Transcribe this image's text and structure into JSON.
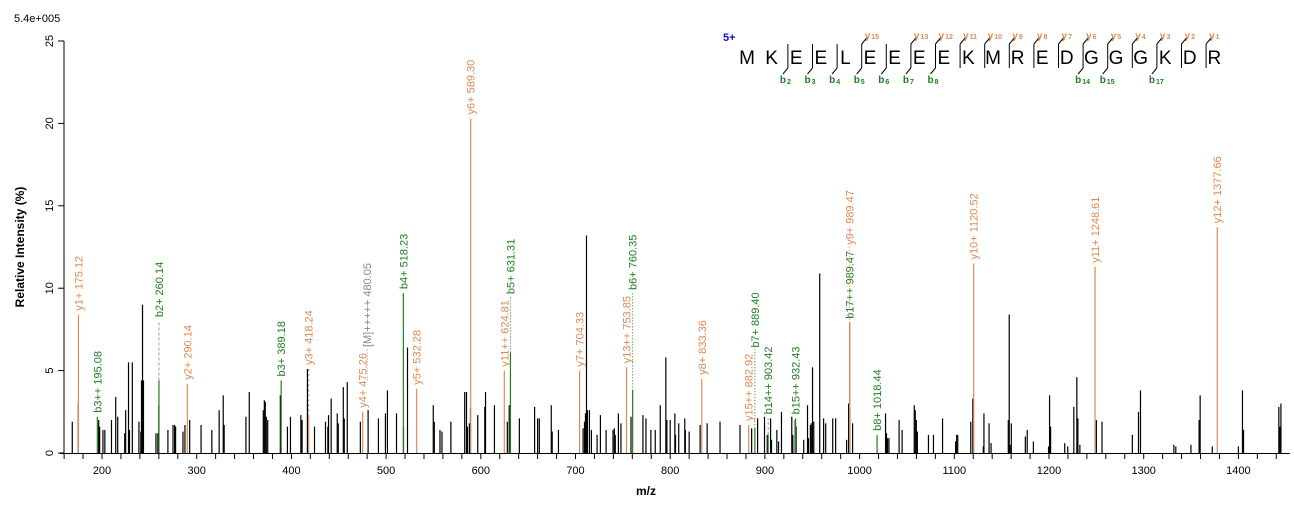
{
  "chart_data": {
    "type": "bar",
    "title": "",
    "scale_label": "5.4e+005",
    "xlabel": "m/z",
    "ylabel": "Relative Intensity (%)",
    "xlim": [
      160,
      1450
    ],
    "ylim": [
      0,
      25
    ],
    "x_ticks": [
      200,
      300,
      400,
      500,
      600,
      700,
      800,
      900,
      1000,
      1100,
      1200,
      1300,
      1400
    ],
    "x_minor_step": 20,
    "y_ticks": [
      0,
      5,
      10,
      15,
      20,
      25
    ],
    "grid": false,
    "colors": {
      "y_ion": "#E08A52",
      "b_ion": "#1F7F1F",
      "precursor": "#888888",
      "unassigned": "#000000",
      "charge": "#1010C0"
    },
    "annotated_peaks": [
      {
        "label": "y1+ 175.12",
        "mz": 175.12,
        "intensity": 8.4,
        "ion": "y_ion"
      },
      {
        "label": "b3++ 195.08",
        "mz": 195.08,
        "intensity": 2.2,
        "ion": "b_ion"
      },
      {
        "label": "b2+ 260.14",
        "mz": 260.14,
        "intensity": 4.4,
        "ion": "b_ion",
        "connector_to": 8.0
      },
      {
        "label": "y2+ 290.14",
        "mz": 290.14,
        "intensity": 4.2,
        "ion": "y_ion"
      },
      {
        "label": "b3+ 389.18",
        "mz": 389.18,
        "intensity": 4.4,
        "ion": "b_ion"
      },
      {
        "label": "y3+ 418.24",
        "mz": 418.24,
        "intensity": 2.2,
        "ion": "y_ion",
        "connector_to": 5.1
      },
      {
        "label": "y4+ 475.26",
        "mz": 475.26,
        "intensity": 2.5,
        "ion": "y_ion"
      },
      {
        "label": "[M]+++++ 480.05",
        "mz": 480.05,
        "intensity": 4.4,
        "ion": "precursor",
        "connector_to": 4.4
      },
      {
        "label": "b4+ 518.23",
        "mz": 518.23,
        "intensity": 9.7,
        "ion": "b_ion"
      },
      {
        "label": "y5+ 532.28",
        "mz": 532.28,
        "intensity": 3.9,
        "ion": "y_ion"
      },
      {
        "label": "y6+ 589.30",
        "mz": 589.3,
        "intensity": 20.3,
        "ion": "y_ion"
      },
      {
        "label": "y11++ 624.81",
        "mz": 624.81,
        "intensity": 5.0,
        "ion": "y_ion"
      },
      {
        "label": "b5+ 631.31",
        "mz": 631.31,
        "intensity": 6.1,
        "ion": "b_ion"
      },
      {
        "label": "y7+ 704.33",
        "mz": 704.33,
        "intensity": 5.0,
        "ion": "y_ion"
      },
      {
        "label": "y13++ 753.85",
        "mz": 753.85,
        "intensity": 5.2,
        "ion": "y_ion"
      },
      {
        "label": "b6+ 760.35",
        "mz": 760.35,
        "intensity": 3.8,
        "ion": "b_ion"
      },
      {
        "label": "y8+ 833.36",
        "mz": 833.36,
        "intensity": 4.5,
        "ion": "y_ion"
      },
      {
        "label": "y15++ 882.92",
        "mz": 882.92,
        "intensity": 1.7,
        "ion": "y_ion"
      },
      {
        "label": "b7+ 889.40",
        "mz": 889.4,
        "intensity": 1.5,
        "ion": "b_ion"
      },
      {
        "label": "b14++ 903.42",
        "mz": 903.42,
        "intensity": 1.1,
        "ion": "b_ion",
        "connector_to": 2.1
      },
      {
        "label": "b15++ 932.43",
        "mz": 932.43,
        "intensity": 2.1,
        "ion": "b_ion"
      },
      {
        "label": "b17++ 989.47",
        "mz": 989.47,
        "intensity": 7.9,
        "ion": "b_ion"
      },
      {
        "label": "y9+ 989.47",
        "mz": 989.47,
        "intensity": 7.9,
        "ion": "y_ion"
      },
      {
        "label": "b8+ 1018.44",
        "mz": 1018.44,
        "intensity": 1.1,
        "ion": "b_ion"
      },
      {
        "label": "y10+ 1120.52",
        "mz": 1120.52,
        "intensity": 11.5,
        "ion": "y_ion"
      },
      {
        "label": "y11+ 1248.61",
        "mz": 1248.61,
        "intensity": 11.3,
        "ion": "y_ion"
      },
      {
        "label": "y12+ 1377.66",
        "mz": 1377.66,
        "intensity": 13.7,
        "ion": "y_ion"
      }
    ],
    "unassigned_peaks": [
      [
        168.6,
        1.9
      ],
      [
        175,
        3.0
      ],
      [
        196.5,
        2.0
      ],
      [
        197.5,
        1.6
      ],
      [
        201,
        1.4
      ],
      [
        203,
        1.4
      ],
      [
        210,
        2.0
      ],
      [
        214.5,
        3.4
      ],
      [
        216.6,
        2.2
      ],
      [
        224,
        1.2
      ],
      [
        225,
        2.6
      ],
      [
        228,
        5.5
      ],
      [
        229,
        1.4
      ],
      [
        232,
        5.5
      ],
      [
        239,
        1.9
      ],
      [
        241,
        1.3
      ],
      [
        241.7,
        4.4
      ],
      [
        242.8,
        9.0
      ],
      [
        243.8,
        4.4
      ],
      [
        257,
        1.2
      ],
      [
        259,
        1.2
      ],
      [
        260,
        2.9
      ],
      [
        269.6,
        1.4
      ],
      [
        275,
        1.7
      ],
      [
        276.7,
        1.7
      ],
      [
        277.7,
        1.6
      ],
      [
        285.5,
        1.3
      ],
      [
        287.6,
        1.7
      ],
      [
        292.6,
        2.0
      ],
      [
        304.6,
        1.7
      ],
      [
        316,
        1.4
      ],
      [
        323.7,
        2.6
      ],
      [
        328,
        3.5
      ],
      [
        329,
        1.7
      ],
      [
        352,
        2.2
      ],
      [
        355.5,
        3.7
      ],
      [
        370.3,
        2.6
      ],
      [
        371.4,
        3.2
      ],
      [
        372.4,
        3.1
      ],
      [
        373.5,
        2.2
      ],
      [
        375,
        2.0
      ],
      [
        388.3,
        3.5
      ],
      [
        395.8,
        1.6
      ],
      [
        399,
        2.2
      ],
      [
        410,
        2.3
      ],
      [
        411.3,
        2.0
      ],
      [
        416.9,
        5.1
      ],
      [
        424.4,
        1.6
      ],
      [
        436,
        1.9
      ],
      [
        438.5,
        1.6
      ],
      [
        439.2,
        2.3
      ],
      [
        442,
        3.3
      ],
      [
        448.4,
        2.4
      ],
      [
        449.5,
        1.8
      ],
      [
        454.8,
        4.0
      ],
      [
        455.8,
        2.1
      ],
      [
        459,
        4.3
      ],
      [
        472.8,
        1.9
      ],
      [
        481,
        2.6
      ],
      [
        491.9,
        2.1
      ],
      [
        499.3,
        2.4
      ],
      [
        501.4,
        3.8
      ],
      [
        511,
        2.4
      ],
      [
        518.4,
        1.6
      ],
      [
        522.6,
        6.4
      ],
      [
        549.8,
        2.9
      ],
      [
        550.9,
        1.9
      ],
      [
        556.9,
        1.4
      ],
      [
        559,
        1.3
      ],
      [
        568.4,
        1.9
      ],
      [
        583,
        3.7
      ],
      [
        584.9,
        3.7
      ],
      [
        586,
        1.6
      ],
      [
        588,
        1.8
      ],
      [
        589.1,
        2.7
      ],
      [
        596.8,
        2.3
      ],
      [
        604.2,
        2.8
      ],
      [
        605,
        3.7
      ],
      [
        614.4,
        2.9
      ],
      [
        628,
        1.9
      ],
      [
        630,
        2.9
      ],
      [
        640.7,
        2.1
      ],
      [
        656.8,
        2.8
      ],
      [
        660,
        2.1
      ],
      [
        661.8,
        2.1
      ],
      [
        674.4,
        2.9
      ],
      [
        675.4,
        1.3
      ],
      [
        682,
        1.4
      ],
      [
        708,
        1.5
      ],
      [
        709.5,
        1.9
      ],
      [
        710.5,
        2.4
      ],
      [
        711.6,
        13.2
      ],
      [
        712.6,
        2.6
      ],
      [
        714.7,
        2.6
      ],
      [
        716.8,
        1.4
      ],
      [
        722.8,
        1.1
      ],
      [
        726.3,
        2.3
      ],
      [
        732.3,
        1.4
      ],
      [
        739.6,
        1.4
      ],
      [
        741,
        1.5
      ],
      [
        742,
        1.1
      ],
      [
        745.3,
        2.4
      ],
      [
        748,
        1.8
      ],
      [
        758.6,
        2.2
      ],
      [
        771.2,
        2.3
      ],
      [
        774.4,
        2.1
      ],
      [
        779.6,
        1.4
      ],
      [
        784.2,
        1.4
      ],
      [
        789.5,
        2.9
      ],
      [
        795.4,
        5.8
      ],
      [
        796.5,
        2.0
      ],
      [
        800,
        2.0
      ],
      [
        804.9,
        2.4
      ],
      [
        805.6,
        1.1
      ],
      [
        809,
        1.8
      ],
      [
        815.4,
        2.1
      ],
      [
        816,
        1.4
      ],
      [
        820,
        1.3
      ],
      [
        831.6,
        1.7
      ],
      [
        839,
        1.8
      ],
      [
        852.6,
        1.9
      ],
      [
        873.7,
        1.7
      ],
      [
        886,
        1.5
      ],
      [
        892.3,
        2.1
      ],
      [
        899.6,
        2.2
      ],
      [
        902.5,
        1.1
      ],
      [
        906,
        2.1
      ],
      [
        907,
        0.8
      ],
      [
        912.6,
        1.4
      ],
      [
        914.4,
        0.7
      ],
      [
        917.5,
        2.5
      ],
      [
        928.4,
        2.2
      ],
      [
        929.5,
        1.1
      ],
      [
        932,
        2.0
      ],
      [
        933,
        1.6
      ],
      [
        941,
        0.8
      ],
      [
        945,
        2.9
      ],
      [
        946,
        0.9
      ],
      [
        948,
        1.7
      ],
      [
        949,
        1.8
      ],
      [
        950.3,
        5.2
      ],
      [
        951.6,
        1.9
      ],
      [
        957.9,
        10.9
      ],
      [
        962,
        2.1
      ],
      [
        964.2,
        1.8
      ],
      [
        971.6,
        2.1
      ],
      [
        974.7,
        2.1
      ],
      [
        986.3,
        0.8
      ],
      [
        988.4,
        3.0
      ],
      [
        989.5,
        2.7
      ],
      [
        992.6,
        1.8
      ],
      [
        1027.4,
        2.4
      ],
      [
        1028.4,
        1.2
      ],
      [
        1029.5,
        0.9
      ],
      [
        1031,
        0.9
      ],
      [
        1041.7,
        2.0
      ],
      [
        1044.9,
        1.4
      ],
      [
        1057.7,
        2.9
      ],
      [
        1058.8,
        2.6
      ],
      [
        1059.9,
        2.0
      ],
      [
        1061,
        1.3
      ],
      [
        1072.7,
        1.1
      ],
      [
        1078,
        1.1
      ],
      [
        1087.6,
        2.1
      ],
      [
        1101.4,
        0.7
      ],
      [
        1102.5,
        1.1
      ],
      [
        1103.6,
        1.1
      ],
      [
        1117.4,
        1.9
      ],
      [
        1119.6,
        3.3
      ],
      [
        1130.6,
        0.4
      ],
      [
        1131.3,
        2.4
      ],
      [
        1136.7,
        1.8
      ],
      [
        1138.8,
        0.6
      ],
      [
        1157,
        2.0
      ],
      [
        1158,
        8.4
      ],
      [
        1159,
        0.5
      ],
      [
        1160.2,
        1.8
      ],
      [
        1175,
        1.0
      ],
      [
        1177,
        1.4
      ],
      [
        1183.5,
        0.7
      ],
      [
        1199.5,
        0.4
      ],
      [
        1200.6,
        3.5
      ],
      [
        1201.7,
        1.6
      ],
      [
        1216.6,
        0.6
      ],
      [
        1219.8,
        0.4
      ],
      [
        1226.2,
        2.8
      ],
      [
        1229.4,
        4.6
      ],
      [
        1230.5,
        2.1
      ],
      [
        1232.6,
        0.5
      ],
      [
        1250,
        2.0
      ],
      [
        1256,
        1.9
      ],
      [
        1288,
        1.1
      ],
      [
        1294.5,
        2.5
      ],
      [
        1296.6,
        3.8
      ],
      [
        1331.8,
        0.5
      ],
      [
        1333.9,
        0.4
      ],
      [
        1349.9,
        0.5
      ],
      [
        1358.5,
        2.0
      ],
      [
        1359.6,
        3.5
      ],
      [
        1372.4,
        0.4
      ],
      [
        1400,
        0.4
      ],
      [
        1404.3,
        3.8
      ],
      [
        1405.4,
        1.4
      ],
      [
        1442.7,
        2.8
      ],
      [
        1443.8,
        1.6
      ],
      [
        1444.9,
        3.0
      ]
    ]
  },
  "peptide": {
    "charge": "5+",
    "sequence": [
      "M",
      "K",
      "E",
      "E",
      "L",
      "E",
      "E",
      "E",
      "E",
      "K",
      "M",
      "R",
      "E",
      "D",
      "G",
      "G",
      "G",
      "K",
      "D",
      "R"
    ],
    "y_ions": [
      15,
      13,
      12,
      11,
      10,
      9,
      8,
      7,
      6,
      5,
      4,
      3,
      2,
      1
    ],
    "b_ions": [
      2,
      3,
      4,
      5,
      6,
      7,
      8,
      14,
      15,
      17
    ]
  }
}
